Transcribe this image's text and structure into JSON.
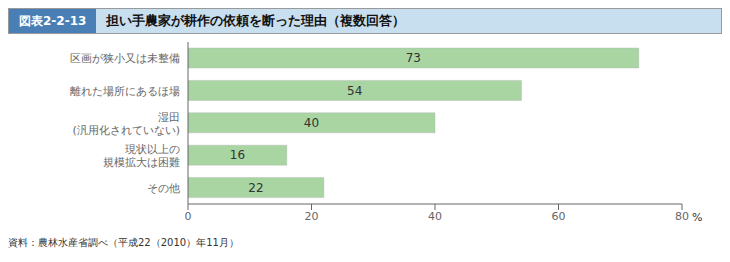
{
  "chart_data": {
    "type": "bar",
    "orientation": "horizontal",
    "title": "担い手農家が耕作の依頼を断った理由（複数回答）",
    "annotations": [
      "図表2-2-13",
      "資料：農林水産省調べ（平成22（2010）年11月）"
    ],
    "xlabel": "%",
    "categories": [
      "区画が狭小又は未整備",
      "離れた場所にあるほ場",
      "湿田\n(汎用化されていない)",
      "現状以上の\n規模拡大は困難",
      "その他"
    ],
    "values": [
      73,
      54,
      40,
      16,
      22
    ],
    "color": "#a8d5a2",
    "xlim": [
      0,
      80
    ],
    "xticks": [
      0,
      20,
      40,
      60,
      80
    ],
    "grid": false,
    "data_labels": true
  }
}
